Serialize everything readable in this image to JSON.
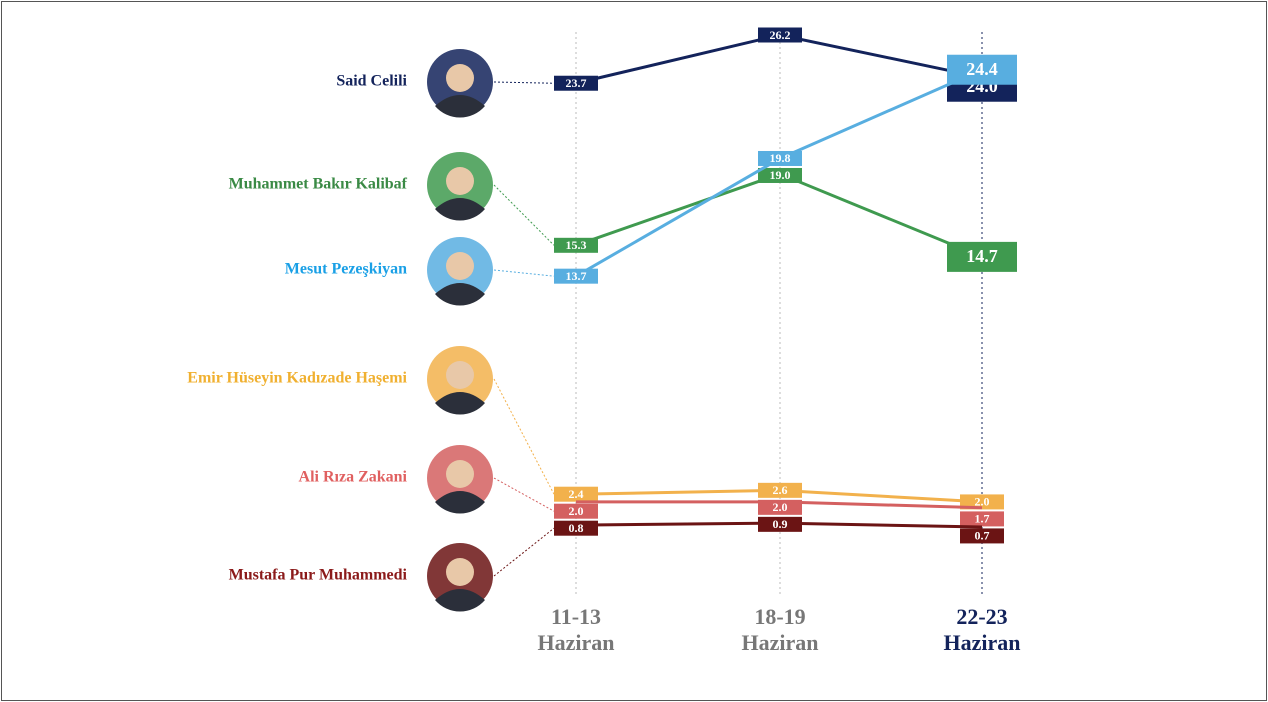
{
  "chart_data": {
    "type": "line",
    "categories": [
      "11-13 Haziran",
      "18-19 Haziran",
      "22-23 Haziran"
    ],
    "series": [
      {
        "name": "Said Celili",
        "color": "#13235b",
        "values": [
          23.7,
          26.2,
          24.0
        ],
        "value_labels": [
          "23.7",
          "26.2",
          "24.0"
        ]
      },
      {
        "name": "Muhammet Bakır Kalibaf",
        "color": "#3f9a4f",
        "values": [
          15.3,
          19.0,
          14.7
        ],
        "value_labels": [
          "15.3",
          "19.0",
          "14.7"
        ]
      },
      {
        "name": "Mesut Pezeşkiyan",
        "color": "#58aee0",
        "values": [
          13.7,
          19.8,
          24.4
        ],
        "value_labels": [
          "13.7",
          "19.8",
          "24.4"
        ]
      },
      {
        "name": "Emir Hüseyin Kadızade Haşemi",
        "color": "#f2b14c",
        "values": [
          2.4,
          2.6,
          2.0
        ],
        "value_labels": [
          "2.4",
          "2.6",
          "2.0"
        ]
      },
      {
        "name": "Ali Rıza Zakani",
        "color": "#d46060",
        "values": [
          2.0,
          2.0,
          1.7
        ],
        "value_labels": [
          "2.0",
          "2.0",
          "1.7"
        ]
      },
      {
        "name": "Mustafa Pur Muhammedi",
        "color": "#6b1414",
        "values": [
          0.8,
          0.9,
          0.7
        ],
        "value_labels": [
          "0.8",
          "0.9",
          "0.7"
        ]
      }
    ]
  }
}
